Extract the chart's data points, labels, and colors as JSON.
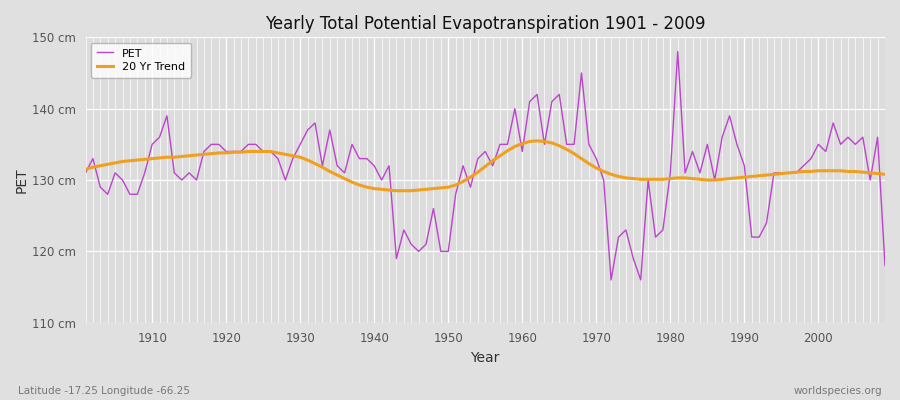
{
  "title": "Yearly Total Potential Evapotranspiration 1901 - 2009",
  "xlabel": "Year",
  "ylabel": "PET",
  "bottom_left_label": "Latitude -17.25 Longitude -66.25",
  "bottom_right_label": "worldspecies.org",
  "ylim": [
    110,
    150
  ],
  "yticks": [
    110,
    120,
    130,
    140,
    150
  ],
  "ytick_labels": [
    "110 cm",
    "120 cm",
    "130 cm",
    "140 cm",
    "150 cm"
  ],
  "fig_bg_color": "#e0e0e0",
  "plot_bg_color": "#dcdcdc",
  "pet_color": "#bb44cc",
  "trend_color": "#f0a020",
  "pet_data": [
    131,
    133,
    129,
    128,
    131,
    130,
    128,
    128,
    131,
    135,
    136,
    139,
    131,
    130,
    131,
    130,
    134,
    135,
    135,
    134,
    134,
    134,
    135,
    135,
    134,
    134,
    133,
    130,
    133,
    135,
    137,
    138,
    132,
    137,
    132,
    131,
    135,
    133,
    133,
    132,
    130,
    132,
    119,
    123,
    121,
    120,
    121,
    126,
    120,
    120,
    128,
    132,
    129,
    133,
    134,
    132,
    135,
    135,
    140,
    134,
    141,
    142,
    135,
    141,
    142,
    135,
    135,
    145,
    135,
    133,
    130,
    116,
    122,
    123,
    119,
    116,
    130,
    122,
    123,
    131,
    148,
    131,
    134,
    131,
    135,
    130,
    136,
    139,
    135,
    132,
    122,
    122,
    124,
    131,
    131,
    131,
    131,
    132,
    133,
    135,
    134,
    138,
    135,
    136,
    135,
    136,
    130,
    136,
    118
  ],
  "trend_data": [
    131.5,
    131.8,
    132.0,
    132.2,
    132.4,
    132.6,
    132.7,
    132.8,
    132.9,
    133.0,
    133.1,
    133.2,
    133.2,
    133.3,
    133.4,
    133.5,
    133.6,
    133.7,
    133.8,
    133.8,
    133.9,
    133.9,
    134.0,
    134.0,
    134.0,
    134.0,
    133.8,
    133.6,
    133.4,
    133.2,
    132.8,
    132.3,
    131.8,
    131.2,
    130.7,
    130.2,
    129.7,
    129.3,
    129.0,
    128.8,
    128.7,
    128.6,
    128.5,
    128.5,
    128.5,
    128.6,
    128.7,
    128.8,
    128.9,
    129.0,
    129.3,
    129.8,
    130.4,
    131.1,
    131.9,
    132.7,
    133.4,
    134.1,
    134.7,
    135.1,
    135.4,
    135.5,
    135.4,
    135.2,
    134.8,
    134.3,
    133.7,
    133.0,
    132.3,
    131.7,
    131.2,
    130.8,
    130.5,
    130.3,
    130.2,
    130.1,
    130.1,
    130.1,
    130.1,
    130.2,
    130.3,
    130.3,
    130.2,
    130.1,
    130.0,
    130.0,
    130.1,
    130.2,
    130.3,
    130.4,
    130.5,
    130.6,
    130.7,
    130.8,
    130.9,
    131.0,
    131.1,
    131.2,
    131.2,
    131.3,
    131.3,
    131.3,
    131.3,
    131.2,
    131.2,
    131.1,
    131.0,
    130.9,
    130.8
  ],
  "start_year": 1901
}
